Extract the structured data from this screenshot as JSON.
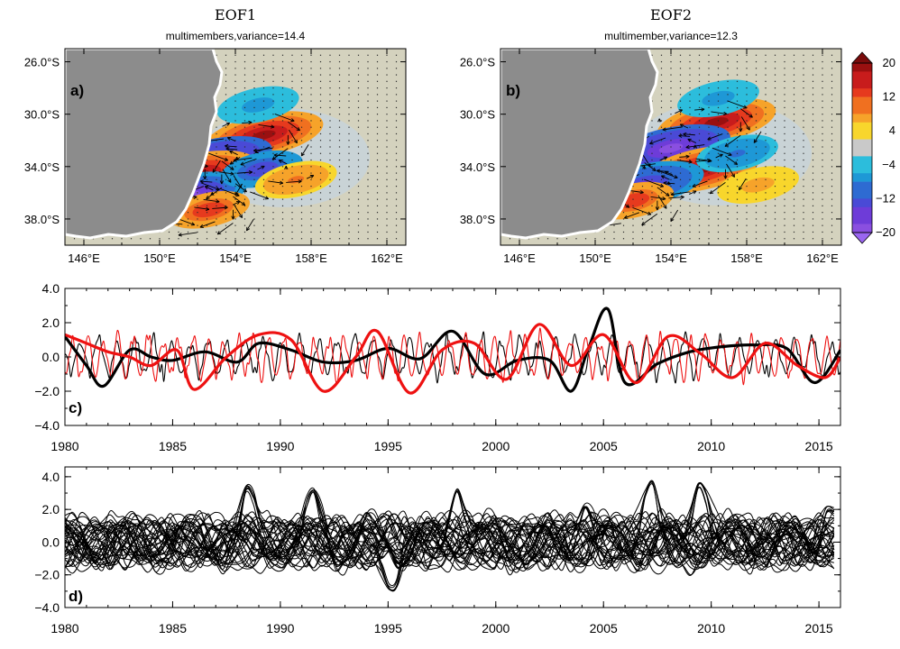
{
  "chart_data": [
    {
      "type": "heatmap",
      "panel_label": "a)",
      "title": "EOF1",
      "subtitle": "multimembers,variance=14.4",
      "lon_ticks": [
        "146°E",
        "150°E",
        "154°E",
        "158°E",
        "162°E"
      ],
      "lat_ticks": [
        "26.0°S",
        "30.0°S",
        "34.0°S",
        "38.0°S"
      ],
      "lon_range": [
        145,
        163
      ],
      "lat_range": [
        -40,
        -25
      ],
      "overlay": "velocity vectors",
      "land_color": "#8c8c8c",
      "features": [
        {
          "lon": 155.5,
          "lat": -31.6,
          "value": 18
        },
        {
          "lon": 152.8,
          "lat": -33.5,
          "value": -20
        },
        {
          "lon": 152.0,
          "lat": -34.6,
          "value": 18
        },
        {
          "lon": 151.5,
          "lat": -36.2,
          "value": -18
        },
        {
          "lon": 152.6,
          "lat": -37.3,
          "value": 14
        },
        {
          "lon": 155.4,
          "lat": -34.2,
          "value": -14
        },
        {
          "lon": 157.2,
          "lat": -35.0,
          "value": 10
        },
        {
          "lon": 155.2,
          "lat": -29.3,
          "value": -8
        }
      ]
    },
    {
      "type": "heatmap",
      "panel_label": "b)",
      "title": "EOF2",
      "subtitle": "multimember,variance=12.3",
      "lon_ticks": [
        "146°E",
        "150°E",
        "154°E",
        "158°E",
        "162°E"
      ],
      "lat_ticks": [
        "26.0°S",
        "30.0°S",
        "34.0°S",
        "38.0°S"
      ],
      "lon_range": [
        145,
        163
      ],
      "lat_range": [
        -40,
        -25
      ],
      "overlay": "velocity vectors",
      "land_color": "#8c8c8c",
      "colorbar": {
        "labels": [
          "20",
          "12",
          "4",
          "−4",
          "−12",
          "−20"
        ],
        "range": [
          -20,
          20
        ],
        "extend": "both"
      },
      "features": [
        {
          "lon": 156.4,
          "lat": -30.6,
          "value": 18
        },
        {
          "lon": 154.0,
          "lat": -32.6,
          "value": -20
        },
        {
          "lon": 155.6,
          "lat": -34.2,
          "value": 18
        },
        {
          "lon": 152.6,
          "lat": -35.4,
          "value": -16
        },
        {
          "lon": 152.0,
          "lat": -36.6,
          "value": 14
        },
        {
          "lon": 158.6,
          "lat": -35.4,
          "value": 8
        },
        {
          "lon": 156.5,
          "lat": -28.8,
          "value": -8
        },
        {
          "lon": 157.5,
          "lat": -33.0,
          "value": -10
        }
      ]
    },
    {
      "type": "line",
      "panel_label": "c)",
      "xlim": [
        1980,
        2016
      ],
      "ylim": [
        -4,
        4
      ],
      "x_ticks": [
        "1980",
        "1985",
        "1990",
        "1995",
        "2000",
        "2005",
        "2010",
        "2015"
      ],
      "y_ticks": [
        "4.0",
        "2.0",
        "0.0",
        "−2.0",
        "−4.0"
      ],
      "series": [
        {
          "color": "#000000",
          "style": "thick",
          "x": [
            1980,
            1981,
            1981.8,
            1983,
            1984,
            1985,
            1986.5,
            1988,
            1989,
            1990.5,
            1992,
            1993.5,
            1995,
            1996.5,
            1998,
            1999.5,
            2001,
            2002.5,
            2003.5,
            2004.3,
            2005.2,
            2006,
            2007.5,
            2009,
            2010.5,
            2012,
            2013.5,
            2014.8,
            2016
          ],
          "y": [
            1.2,
            -0.5,
            -1.7,
            0.4,
            0.0,
            -0.2,
            0.3,
            -0.3,
            0.8,
            0.4,
            -0.3,
            -0.2,
            0.5,
            -0.1,
            1.5,
            -1.0,
            -0.2,
            -0.2,
            -2.0,
            0.5,
            2.8,
            -1.5,
            -0.4,
            0.3,
            0.6,
            0.7,
            0.5,
            -1.5,
            0.4
          ]
        },
        {
          "color": "#ee1111",
          "style": "thick",
          "x": [
            1980,
            1981,
            1982,
            1983,
            1984,
            1985.2,
            1986,
            1987.5,
            1989,
            1990.5,
            1992,
            1993.5,
            1994.5,
            1996,
            1997.5,
            1999,
            2000.5,
            2002,
            2003.5,
            2005,
            2006.5,
            2008,
            2009.5,
            2011,
            2012.5,
            2014,
            2015.3,
            2016
          ],
          "y": [
            1.3,
            0.8,
            0.3,
            0.0,
            -0.5,
            0.4,
            -1.9,
            0.0,
            1.3,
            1.0,
            -2.0,
            0.0,
            1.5,
            -2.1,
            0.4,
            0.8,
            -1.3,
            1.9,
            -0.5,
            1.3,
            -1.5,
            1.2,
            0.2,
            -1.2,
            0.8,
            -0.5,
            -1.2,
            0.0
          ]
        },
        {
          "color": "#000000",
          "style": "thin",
          "period": 0.85,
          "amplitude": 1.1,
          "x_range": [
            1980,
            2016
          ]
        },
        {
          "color": "#ee1111",
          "style": "thin",
          "period": 0.7,
          "amplitude": 1.2,
          "x_range": [
            1980,
            2016
          ]
        }
      ]
    },
    {
      "type": "line",
      "panel_label": "d)",
      "xlim": [
        1980,
        2016
      ],
      "ylim": [
        -4,
        4.6
      ],
      "x_ticks": [
        "1980",
        "1985",
        "1990",
        "1995",
        "2000",
        "2005",
        "2010",
        "2015"
      ],
      "y_ticks": [
        "4.0",
        "2.0",
        "0.0",
        "−2.0",
        "−4.0"
      ],
      "ensemble_members": 40,
      "series_color": "#000000",
      "peaks": [
        {
          "x": 1988.5,
          "y": 3.8
        },
        {
          "x": 1991.5,
          "y": 3.5
        },
        {
          "x": 1995.2,
          "y": -3.3
        },
        {
          "x": 1998.2,
          "y": 3.6
        },
        {
          "x": 2004.2,
          "y": 2.5
        },
        {
          "x": 2007.2,
          "y": 4.2
        },
        {
          "x": 2009.5,
          "y": 4.0
        },
        {
          "x": 2015.5,
          "y": 2.4
        }
      ]
    }
  ]
}
